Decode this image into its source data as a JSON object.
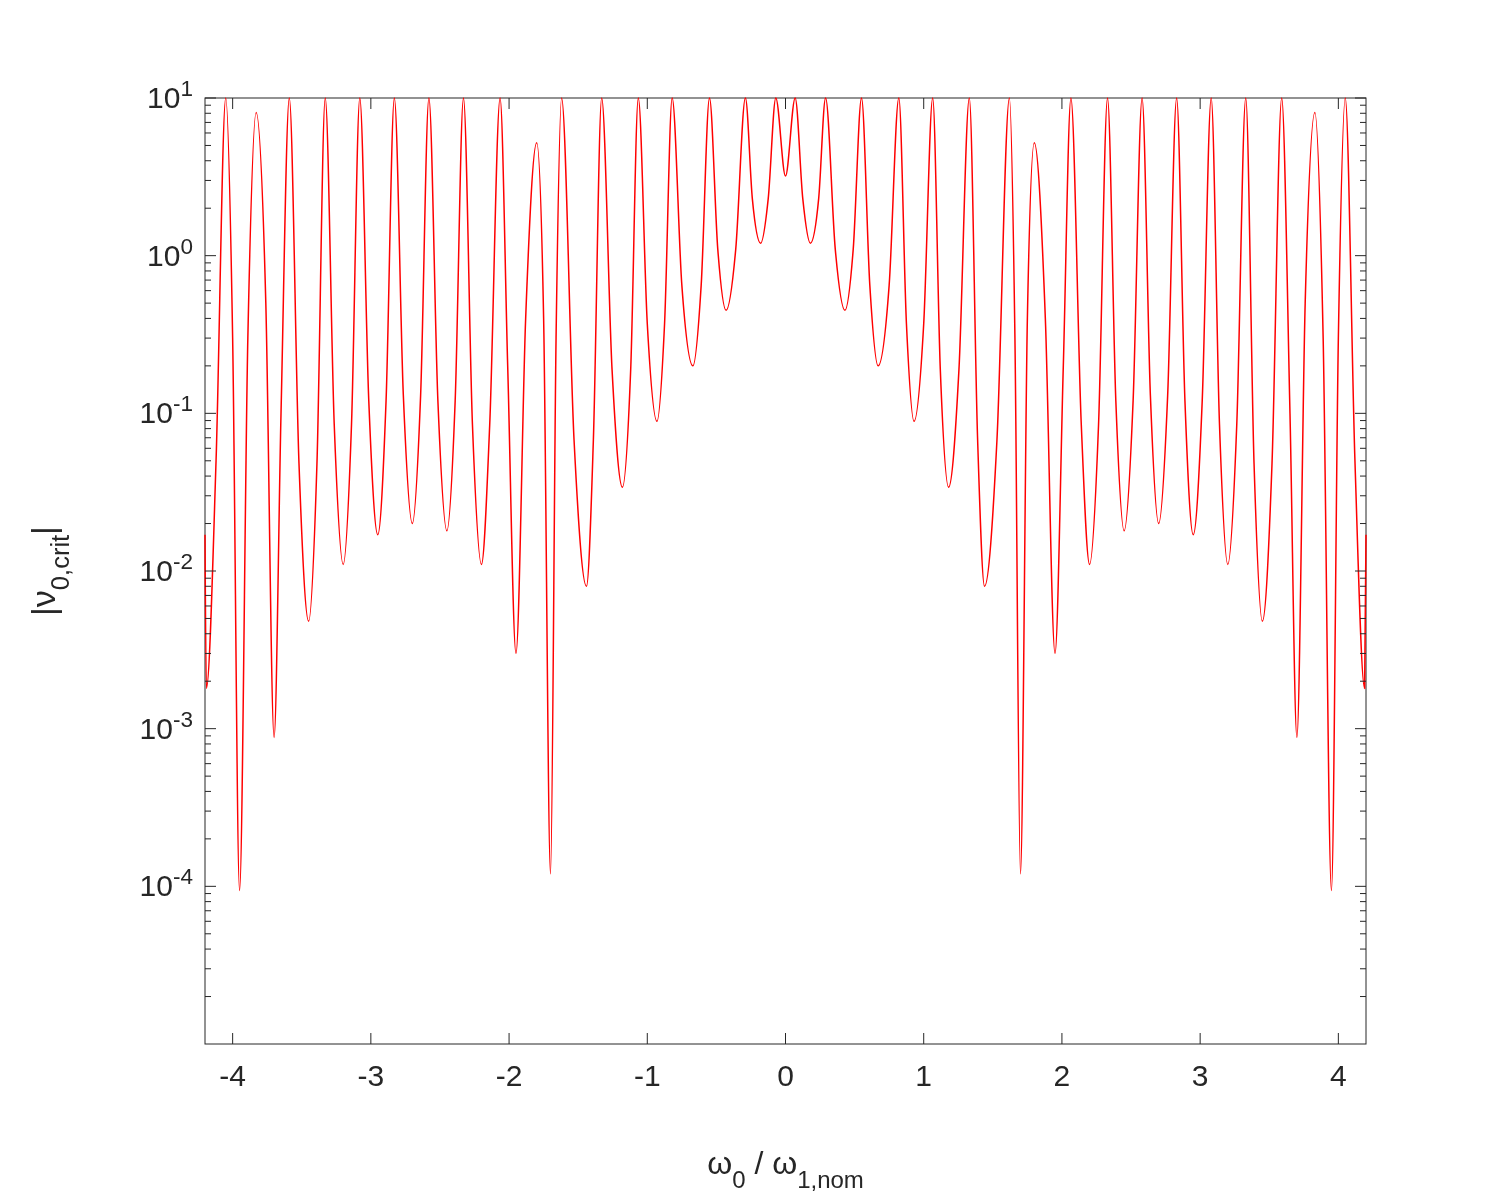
{
  "chart_data": {
    "type": "line",
    "xlabel": "ω$_{0}$ / ω$_{1,nom}$",
    "ylabel": "|ν$_{0,crit}$|",
    "log": "y",
    "xlim": [
      -4.2,
      4.2
    ],
    "ylim": [
      1e-05,
      10
    ],
    "xticks": [
      -4,
      -3,
      -2,
      -1,
      0,
      1,
      2,
      3,
      4
    ],
    "yticks": [
      {
        "value": 2e-05,
        "label": null
      },
      {
        "value": 3e-05,
        "label": null
      },
      {
        "value": 4e-05,
        "label": null
      },
      {
        "value": 5e-05,
        "label": null
      },
      {
        "value": 6e-05,
        "label": null
      },
      {
        "value": 7e-05,
        "label": null
      },
      {
        "value": 8e-05,
        "label": null
      },
      {
        "value": 9e-05,
        "label": null
      },
      {
        "value": 0.0001,
        "label": "10$^{-4}$"
      },
      {
        "value": 0.0002,
        "label": null
      },
      {
        "value": 0.0003,
        "label": null
      },
      {
        "value": 0.0004,
        "label": null
      },
      {
        "value": 0.0005,
        "label": null
      },
      {
        "value": 0.0006,
        "label": null
      },
      {
        "value": 0.0007,
        "label": null
      },
      {
        "value": 0.0008,
        "label": null
      },
      {
        "value": 0.0009,
        "label": null
      },
      {
        "value": 0.001,
        "label": "10$^{-3}$"
      },
      {
        "value": 0.002,
        "label": null
      },
      {
        "value": 0.003,
        "label": null
      },
      {
        "value": 0.004,
        "label": null
      },
      {
        "value": 0.005,
        "label": null
      },
      {
        "value": 0.006,
        "label": null
      },
      {
        "value": 0.007,
        "label": null
      },
      {
        "value": 0.008,
        "label": null
      },
      {
        "value": 0.009,
        "label": null
      },
      {
        "value": 0.01,
        "label": "10$^{-2}$"
      },
      {
        "value": 0.02,
        "label": null
      },
      {
        "value": 0.03,
        "label": null
      },
      {
        "value": 0.04,
        "label": null
      },
      {
        "value": 0.05,
        "label": null
      },
      {
        "value": 0.06,
        "label": null
      },
      {
        "value": 0.07,
        "label": null
      },
      {
        "value": 0.08,
        "label": null
      },
      {
        "value": 0.09,
        "label": null
      },
      {
        "value": 0.1,
        "label": "10$^{-1}$"
      },
      {
        "value": 0.2,
        "label": null
      },
      {
        "value": 0.3,
        "label": null
      },
      {
        "value": 0.4,
        "label": null
      },
      {
        "value": 0.5,
        "label": null
      },
      {
        "value": 0.6,
        "label": null
      },
      {
        "value": 0.7,
        "label": null
      },
      {
        "value": 0.8,
        "label": null
      },
      {
        "value": 0.9,
        "label": null
      },
      {
        "value": 1,
        "label": "10$^{0}$"
      },
      {
        "value": 2,
        "label": null
      },
      {
        "value": 3,
        "label": null
      },
      {
        "value": 4,
        "label": null
      },
      {
        "value": 5,
        "label": null
      },
      {
        "value": 6,
        "label": null
      },
      {
        "value": 7,
        "label": null
      },
      {
        "value": 8,
        "label": null
      },
      {
        "value": 9,
        "label": null
      },
      {
        "value": 10,
        "label": "10$^{1}$"
      }
    ],
    "grid": false,
    "series": [
      {
        "color": "#ff0000",
        "x": [
          -4.2,
          -4.19,
          -4.12,
          -4.05,
          -4.0,
          -3.95,
          -3.89,
          -3.83,
          -3.76,
          -3.7,
          -3.65,
          -3.59,
          -3.52,
          -3.45,
          -3.39,
          -3.33,
          -3.265,
          -3.2,
          -3.14,
          -3.08,
          -3.015,
          -2.95,
          -2.89,
          -2.83,
          -2.765,
          -2.7,
          -2.64,
          -2.58,
          -2.515,
          -2.45,
          -2.39,
          -2.33,
          -2.265,
          -2.2,
          -2.14,
          -2.065,
          -2.01,
          -1.95,
          -1.88,
          -1.8,
          -1.75,
          -1.7,
          -1.66,
          -1.62,
          -1.53,
          -1.44,
          -1.39,
          -1.33,
          -1.255,
          -1.18,
          -1.12,
          -1.065,
          -1.0,
          -0.93,
          -0.875,
          -0.82,
          -0.75,
          -0.67,
          -0.61,
          -0.55,
          -0.49,
          -0.43,
          -0.36,
          -0.29,
          -0.24,
          -0.18,
          -0.125,
          -0.07,
          0,
          0.07,
          0.125,
          0.18,
          0.24,
          0.29,
          0.36,
          0.43,
          0.49,
          0.55,
          0.61,
          0.67,
          0.75,
          0.82,
          0.875,
          0.93,
          1.0,
          1.065,
          1.12,
          1.18,
          1.255,
          1.33,
          1.39,
          1.44,
          1.53,
          1.62,
          1.66,
          1.7,
          1.75,
          1.8,
          1.88,
          1.95,
          2.01,
          2.065,
          2.14,
          2.2,
          2.265,
          2.33,
          2.39,
          2.45,
          2.515,
          2.58,
          2.64,
          2.7,
          2.765,
          2.83,
          2.89,
          2.95,
          3.015,
          3.08,
          3.14,
          3.2,
          3.265,
          3.33,
          3.39,
          3.45,
          3.52,
          3.59,
          3.65,
          3.7,
          3.76,
          3.83,
          3.89,
          3.95,
          4.0,
          4.05,
          4.12,
          4.19,
          4.2
        ],
        "values": [
          0.017,
          0.0018,
          0.05,
          10,
          0.3,
          9.4e-05,
          0.3,
          8.1,
          0.5,
          0.00088,
          0.1,
          10,
          0.048,
          0.0048,
          0.048,
          10,
          0.085,
          0.011,
          0.085,
          10,
          0.12,
          0.017,
          0.12,
          10,
          0.13,
          0.02,
          0.13,
          10,
          0.12,
          0.018,
          0.12,
          10,
          0.085,
          0.011,
          0.085,
          10,
          0.2,
          0.003,
          0.4,
          5.2,
          0.4,
          0.00012,
          0.3,
          10,
          0.068,
          0.008,
          0.068,
          10,
          0.19,
          0.034,
          0.19,
          10,
          0.37,
          0.089,
          0.37,
          10,
          0.65,
          0.2,
          0.65,
          10,
          1.1,
          0.45,
          1.1,
          10,
          2.3,
          1.2,
          2.3,
          10,
          3.2,
          10,
          2.3,
          1.2,
          2.3,
          10,
          1.1,
          0.45,
          1.1,
          10,
          0.65,
          0.2,
          0.65,
          10,
          0.37,
          0.089,
          0.37,
          10,
          0.19,
          0.034,
          0.19,
          10,
          0.068,
          0.008,
          0.068,
          10,
          0.3,
          0.00012,
          0.4,
          5.2,
          0.4,
          0.003,
          0.2,
          10,
          0.085,
          0.011,
          0.085,
          10,
          0.12,
          0.018,
          0.12,
          10,
          0.13,
          0.02,
          0.13,
          10,
          0.12,
          0.017,
          0.12,
          10,
          0.085,
          0.011,
          0.085,
          10,
          0.048,
          0.0048,
          0.048,
          10,
          0.1,
          0.00088,
          0.5,
          8.1,
          0.3,
          9.4e-05,
          0.3,
          10,
          0.05,
          0.0018,
          0.017
        ]
      }
    ]
  }
}
